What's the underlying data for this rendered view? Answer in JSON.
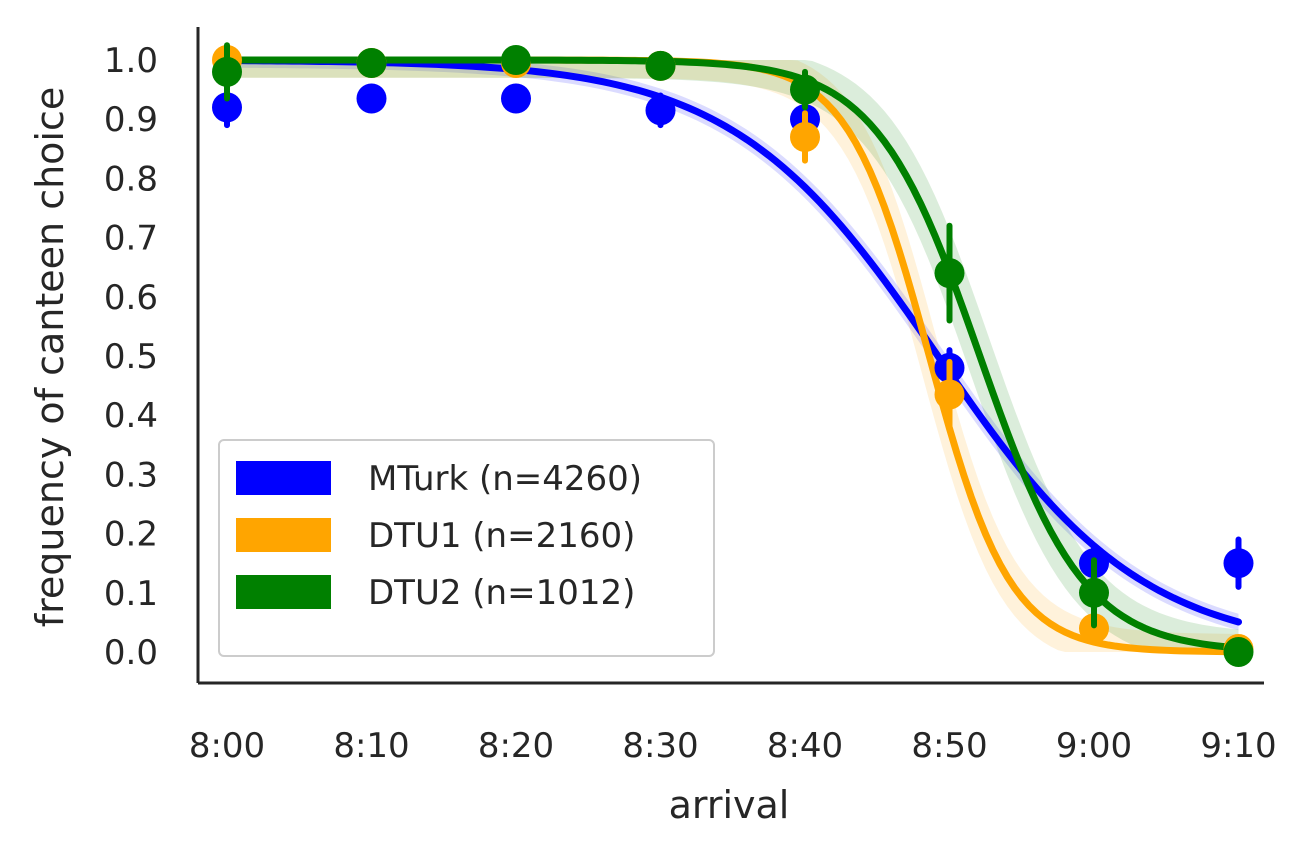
{
  "chart_data": {
    "type": "line",
    "title": "",
    "xlabel": "arrival",
    "ylabel": "frequency of canteen choice",
    "x_ticks": [
      "8:00",
      "8:10",
      "8:20",
      "8:30",
      "8:40",
      "8:50",
      "9:00",
      "9:10"
    ],
    "y_ticks": [
      "0.0",
      "0.1",
      "0.2",
      "0.3",
      "0.4",
      "0.5",
      "0.6",
      "0.7",
      "0.8",
      "0.9",
      "1.0"
    ],
    "xlim": [
      -2,
      72
    ],
    "ylim": [
      -0.05,
      1.07
    ],
    "grid": false,
    "legend_position": "lower-left",
    "series": [
      {
        "name": "MTurk (n=4260)",
        "color": "#0000ff",
        "points": [
          {
            "x": 0,
            "y": 0.92,
            "err": 0.03
          },
          {
            "x": 10,
            "y": 0.935,
            "err": 0.02
          },
          {
            "x": 20,
            "y": 0.935,
            "err": 0.02
          },
          {
            "x": 30,
            "y": 0.915,
            "err": 0.025
          },
          {
            "x": 40,
            "y": 0.9,
            "err": 0.02
          },
          {
            "x": 50,
            "y": 0.48,
            "err": 0.03
          },
          {
            "x": 60,
            "y": 0.15,
            "err": 0.025
          },
          {
            "x": 70,
            "y": 0.15,
            "err": 0.04
          }
        ],
        "fit": {
          "midpoint": 49.2,
          "scale": 7.1
        }
      },
      {
        "name": "DTU1  (n=2160)",
        "color": "#ffa500",
        "points": [
          {
            "x": 0,
            "y": 1.0,
            "err": 0.01
          },
          {
            "x": 10,
            "y": 0.995,
            "err": 0.01
          },
          {
            "x": 20,
            "y": 0.995,
            "err": 0.01
          },
          {
            "x": 30,
            "y": 0.99,
            "err": 0.01
          },
          {
            "x": 40,
            "y": 0.87,
            "err": 0.04
          },
          {
            "x": 50,
            "y": 0.435,
            "err": 0.055
          },
          {
            "x": 60,
            "y": 0.04,
            "err": 0.015
          },
          {
            "x": 70,
            "y": 0.005,
            "err": 0.005
          }
        ],
        "fit": {
          "midpoint": 48.6,
          "scale": 2.8
        }
      },
      {
        "name": "DTU2  (n=1012)",
        "color": "#008000",
        "points": [
          {
            "x": 0,
            "y": 0.98,
            "err": 0.045
          },
          {
            "x": 10,
            "y": 0.995,
            "err": 0.02
          },
          {
            "x": 20,
            "y": 1.0,
            "err": 0.01
          },
          {
            "x": 30,
            "y": 0.99,
            "err": 0.015
          },
          {
            "x": 40,
            "y": 0.95,
            "err": 0.03
          },
          {
            "x": 50,
            "y": 0.64,
            "err": 0.08
          },
          {
            "x": 60,
            "y": 0.1,
            "err": 0.055
          },
          {
            "x": 70,
            "y": 0.0,
            "err": 0.01
          }
        ],
        "fit": {
          "midpoint": 52.1,
          "scale": 3.6
        }
      }
    ]
  }
}
